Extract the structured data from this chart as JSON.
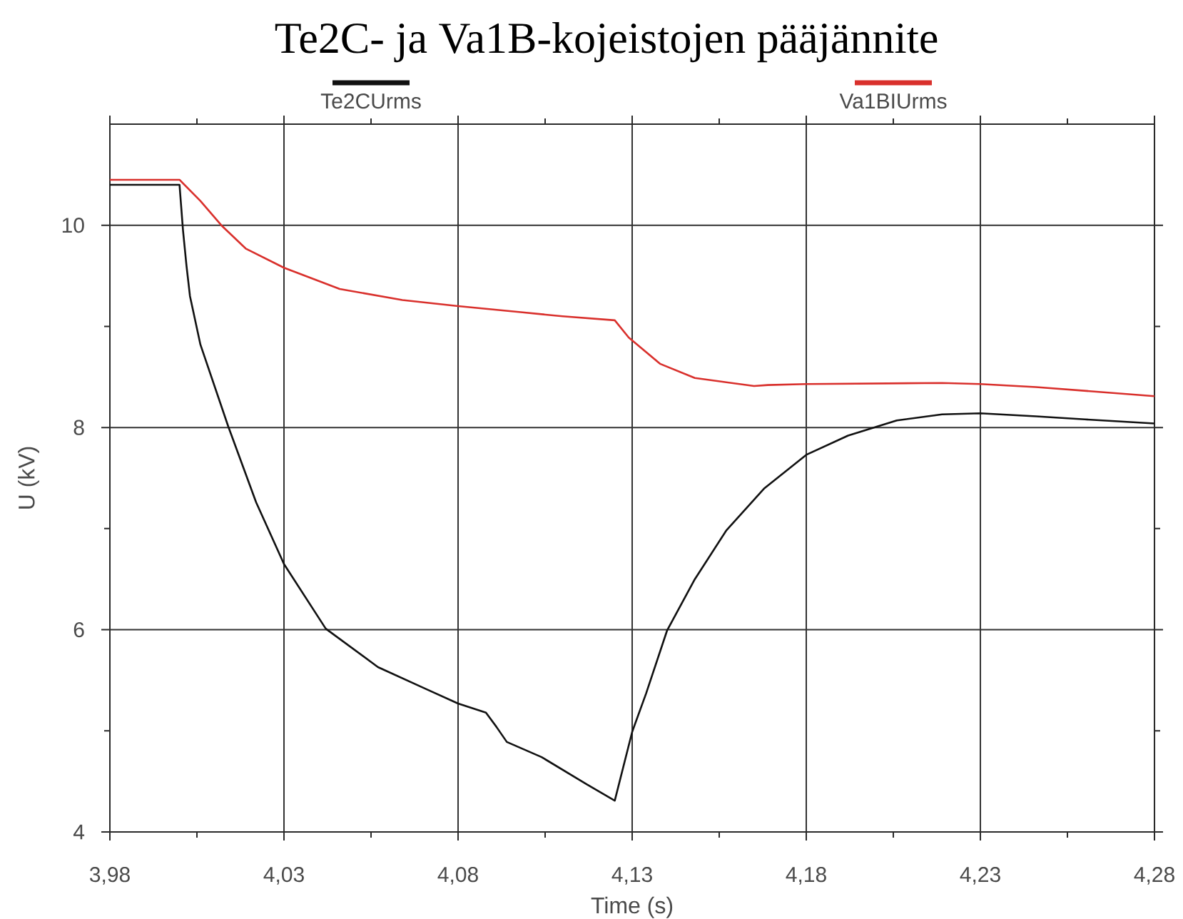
{
  "chart_data": {
    "type": "line",
    "title": "Te2C- ja Va1B-kojeistojen pääjännite",
    "xlabel": "Time (s)",
    "ylabel": "U (kV)",
    "series": [
      {
        "name": "Te2CUrms",
        "color": "#111111",
        "x": [
          3.98,
          4.0,
          4.001,
          4.002,
          4.003,
          4.006,
          4.014,
          4.022,
          4.03,
          4.042,
          4.057,
          4.071,
          4.08,
          4.088,
          4.091,
          4.094,
          4.104,
          4.117,
          4.125,
          4.13,
          4.134,
          4.14,
          4.148,
          4.157,
          4.168,
          4.18,
          4.192,
          4.206,
          4.219,
          4.23,
          4.246,
          4.26,
          4.28
        ],
        "values": [
          10.4,
          10.4,
          9.95,
          9.6,
          9.3,
          8.82,
          8.01,
          7.26,
          6.65,
          6.01,
          5.63,
          5.41,
          5.27,
          5.18,
          5.04,
          4.89,
          4.74,
          4.47,
          4.31,
          4.99,
          5.37,
          5.99,
          6.5,
          6.98,
          7.4,
          7.73,
          7.92,
          8.07,
          8.13,
          8.14,
          8.11,
          8.08,
          8.04
        ]
      },
      {
        "name": "Va1BIUrms",
        "color": "#d9302c",
        "x": [
          3.98,
          4.0,
          4.006,
          4.012,
          4.019,
          4.03,
          4.046,
          4.064,
          4.08,
          4.098,
          4.11,
          4.125,
          4.129,
          4.138,
          4.148,
          4.165,
          4.169,
          4.18,
          4.219,
          4.23,
          4.246,
          4.28
        ],
        "values": [
          10.45,
          10.45,
          10.24,
          10.0,
          9.77,
          9.58,
          9.37,
          9.26,
          9.2,
          9.14,
          9.1,
          9.06,
          8.89,
          8.63,
          8.49,
          8.41,
          8.42,
          8.43,
          8.44,
          8.43,
          8.4,
          8.31
        ]
      }
    ],
    "xlim": [
      3.98,
      4.28
    ],
    "xticks": [
      {
        "value": 3.98,
        "label": "3,98"
      },
      {
        "value": 4.005,
        "label": null
      },
      {
        "value": 4.03,
        "label": "4,03"
      },
      {
        "value": 4.055,
        "label": null
      },
      {
        "value": 4.08,
        "label": "4,08"
      },
      {
        "value": 4.105,
        "label": null
      },
      {
        "value": 4.13,
        "label": "4,13"
      },
      {
        "value": 4.155,
        "label": null
      },
      {
        "value": 4.18,
        "label": "4,18"
      },
      {
        "value": 4.205,
        "label": null
      },
      {
        "value": 4.23,
        "label": "4,23"
      },
      {
        "value": 4.255,
        "label": null
      },
      {
        "value": 4.28,
        "label": "4,28"
      }
    ],
    "ylim": [
      4,
      11
    ],
    "yticks": [
      4,
      {
        "value": 5,
        "label": null
      },
      6,
      {
        "value": 7,
        "label": null
      },
      8,
      {
        "value": 9,
        "label": null
      },
      10
    ],
    "grid": true,
    "legend": "top"
  }
}
